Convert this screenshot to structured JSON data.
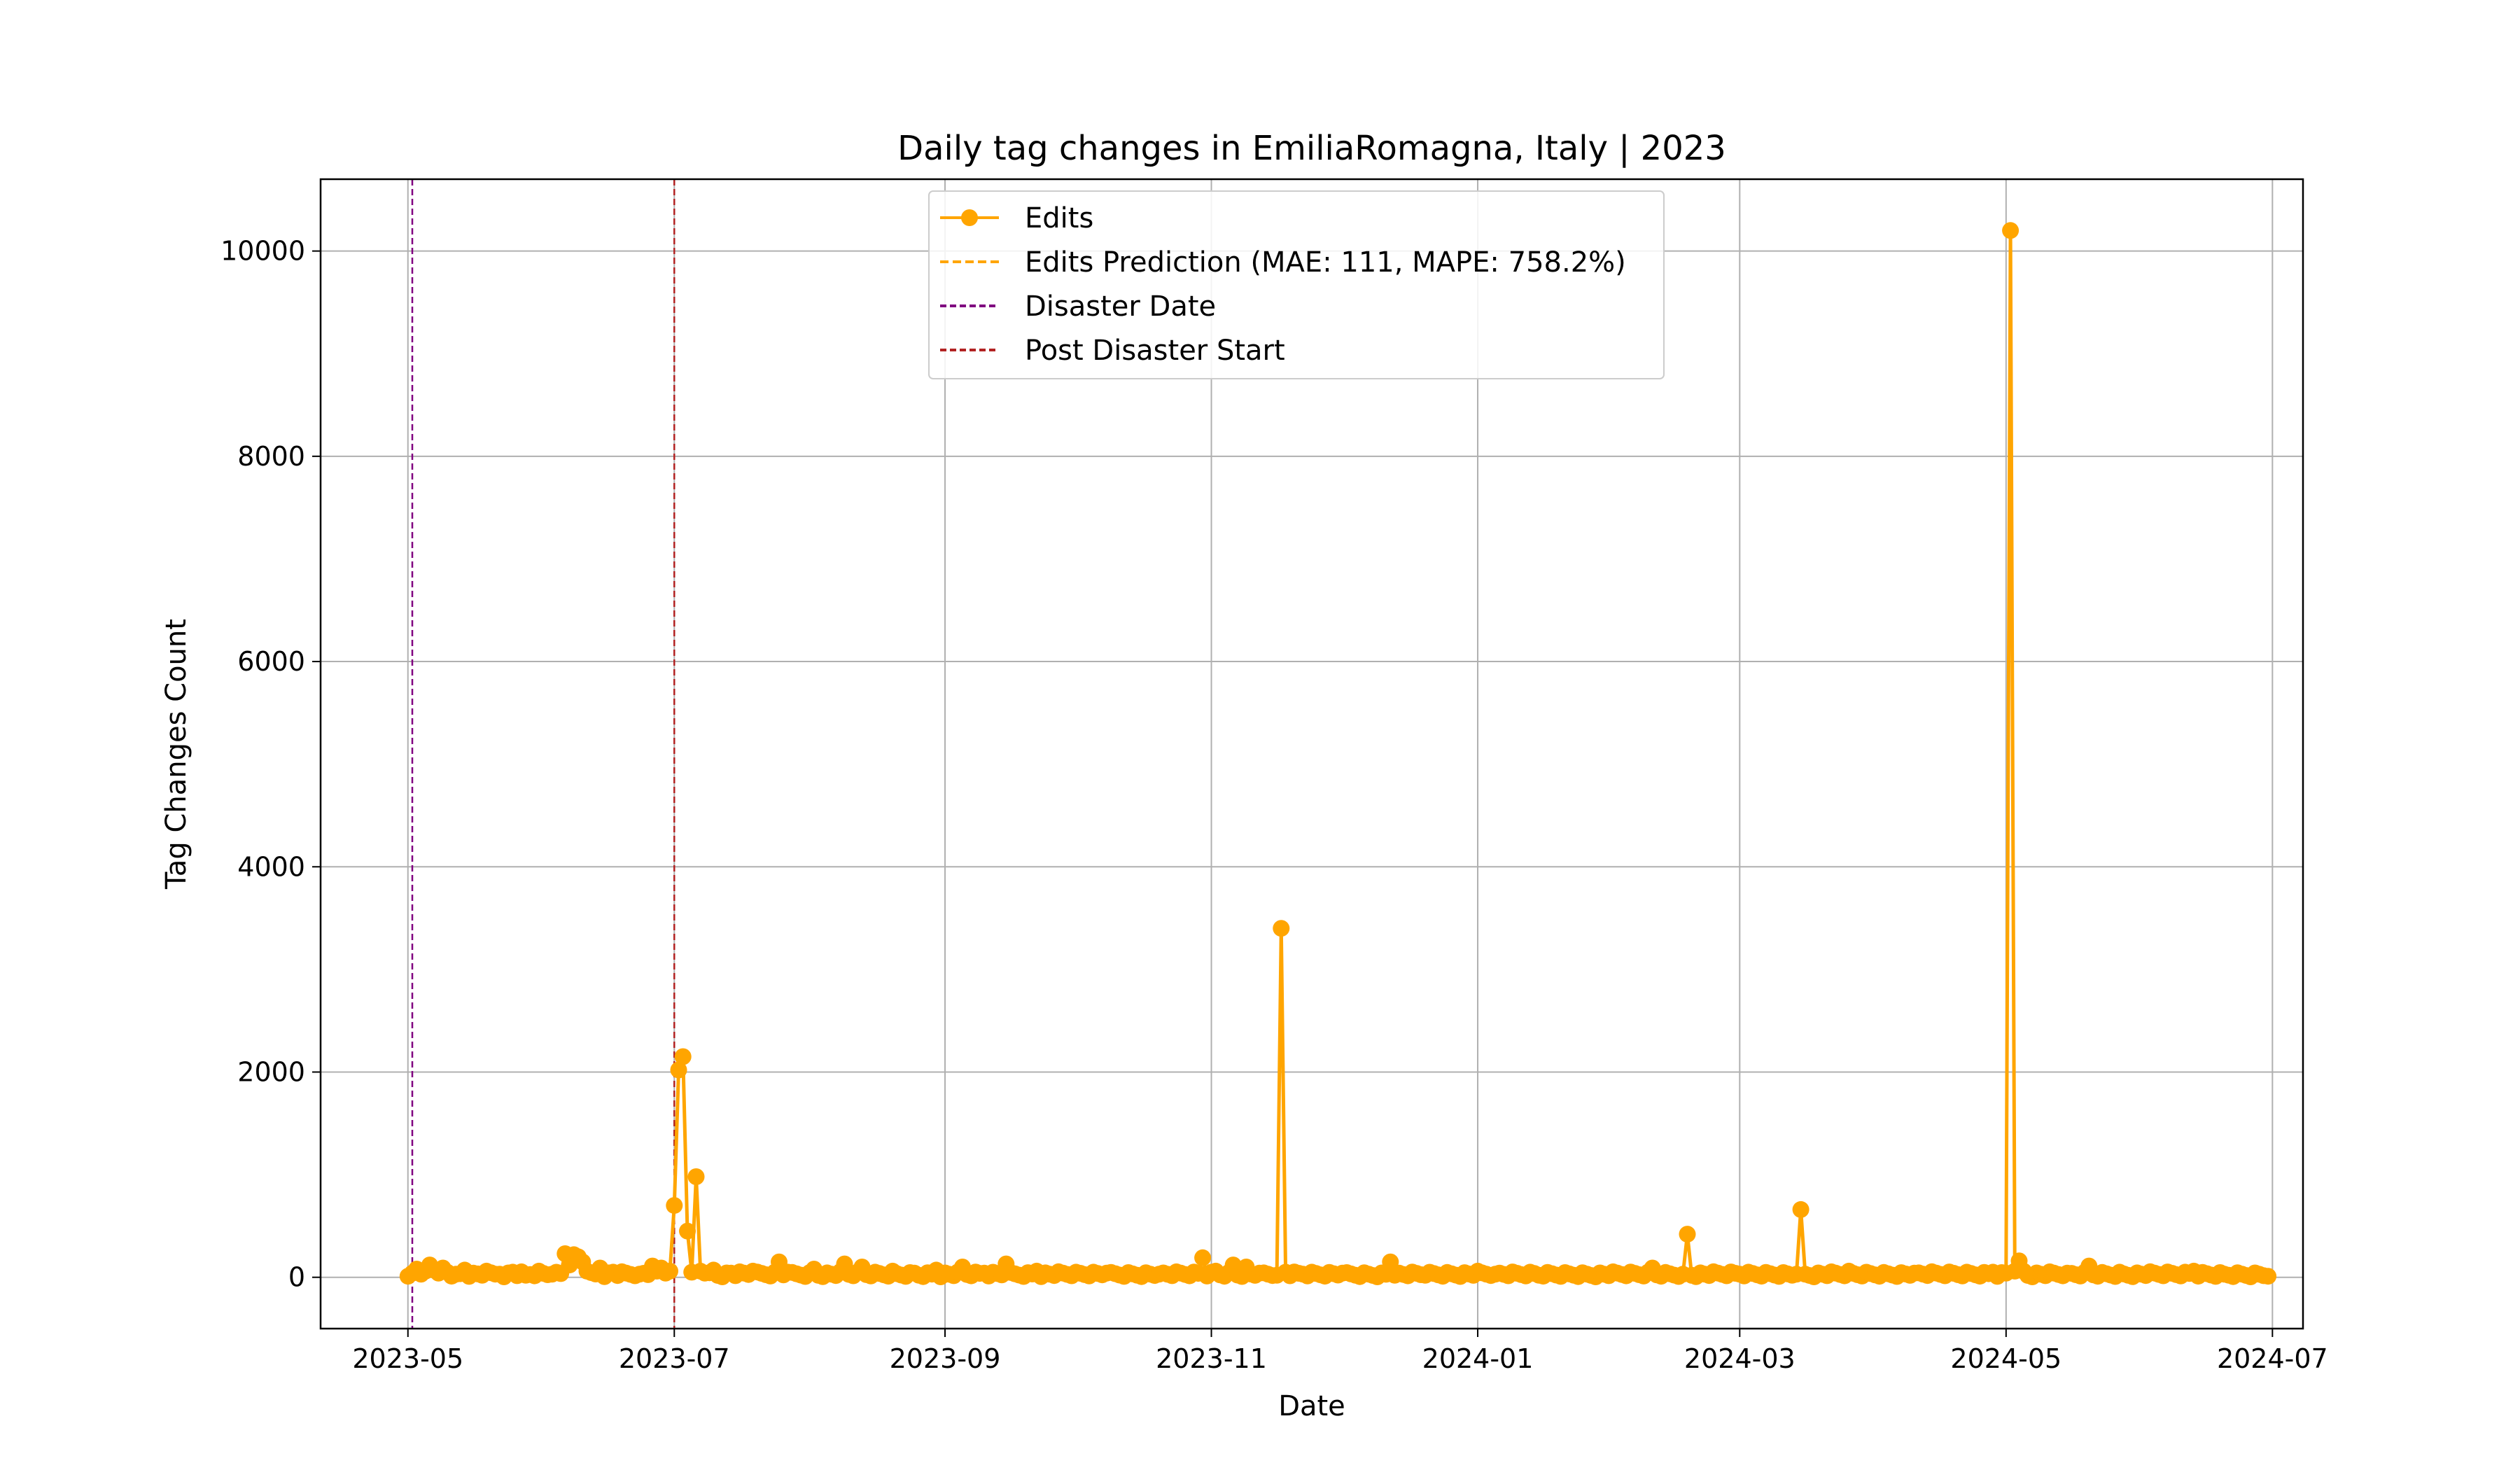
{
  "chart_data": {
    "type": "line",
    "title": "Daily tag changes in EmiliaRomagna, Italy | 2023",
    "xlabel": "Date",
    "ylabel": "Tag Changes Count",
    "xlim": [
      "2023-04-11",
      "2024-07-08"
    ],
    "ylim": [
      -500,
      10700
    ],
    "x_ticks": [
      "2023-05-01",
      "2023-07-01",
      "2023-09-01",
      "2023-11-01",
      "2024-01-01",
      "2024-03-01",
      "2024-05-01",
      "2024-07-01"
    ],
    "x_tick_labels": [
      "2023-05",
      "2023-07",
      "2023-09",
      "2023-11",
      "2024-01",
      "2024-03",
      "2024-05",
      "2024-07"
    ],
    "y_ticks": [
      0,
      2000,
      4000,
      6000,
      8000,
      10000
    ],
    "y_tick_labels": [
      "0",
      "2000",
      "4000",
      "6000",
      "8000",
      "10000"
    ],
    "grid": true,
    "legend_position": "top-center",
    "series": [
      {
        "name": "Edits",
        "color": "#ffa500",
        "marker": "circle",
        "line_style": "solid",
        "x_start": "2023-05-01",
        "x_end": "2024-06-30",
        "baseline": 20,
        "points": [
          [
            "2023-05-01",
            10
          ],
          [
            "2023-05-02",
            40
          ],
          [
            "2023-05-03",
            80
          ],
          [
            "2023-05-04",
            30
          ],
          [
            "2023-05-05",
            60
          ],
          [
            "2023-05-06",
            120
          ],
          [
            "2023-05-07",
            70
          ],
          [
            "2023-05-08",
            40
          ],
          [
            "2023-05-09",
            90
          ],
          [
            "2023-05-10",
            50
          ],
          [
            "2023-05-12",
            30
          ],
          [
            "2023-05-14",
            70
          ],
          [
            "2023-05-16",
            40
          ],
          [
            "2023-05-19",
            60
          ],
          [
            "2023-05-22",
            30
          ],
          [
            "2023-05-25",
            50
          ],
          [
            "2023-05-28",
            20
          ],
          [
            "2023-05-31",
            60
          ],
          [
            "2023-06-03",
            30
          ],
          [
            "2023-06-06",
            230
          ],
          [
            "2023-06-07",
            120
          ],
          [
            "2023-06-08",
            220
          ],
          [
            "2023-06-09",
            200
          ],
          [
            "2023-06-10",
            150
          ],
          [
            "2023-06-11",
            60
          ],
          [
            "2023-06-14",
            90
          ],
          [
            "2023-06-17",
            50
          ],
          [
            "2023-06-20",
            40
          ],
          [
            "2023-06-23",
            30
          ],
          [
            "2023-06-26",
            110
          ],
          [
            "2023-06-27",
            60
          ],
          [
            "2023-06-28",
            90
          ],
          [
            "2023-06-29",
            40
          ],
          [
            "2023-06-30",
            60
          ],
          [
            "2023-07-01",
            700
          ],
          [
            "2023-07-02",
            2020
          ],
          [
            "2023-07-03",
            2150
          ],
          [
            "2023-07-04",
            450
          ],
          [
            "2023-07-05",
            50
          ],
          [
            "2023-07-06",
            980
          ],
          [
            "2023-07-07",
            60
          ],
          [
            "2023-07-08",
            40
          ],
          [
            "2023-07-10",
            70
          ],
          [
            "2023-07-14",
            40
          ],
          [
            "2023-07-19",
            60
          ],
          [
            "2023-07-25",
            150
          ],
          [
            "2023-07-27",
            50
          ],
          [
            "2023-08-02",
            80
          ],
          [
            "2023-08-09",
            130
          ],
          [
            "2023-08-13",
            100
          ],
          [
            "2023-08-20",
            60
          ],
          [
            "2023-08-25",
            40
          ],
          [
            "2023-08-30",
            70
          ],
          [
            "2023-09-05",
            100
          ],
          [
            "2023-09-10",
            40
          ],
          [
            "2023-09-15",
            130
          ],
          [
            "2023-09-22",
            60
          ],
          [
            "2023-10-01",
            50
          ],
          [
            "2023-10-08",
            40
          ],
          [
            "2023-10-20",
            30
          ],
          [
            "2023-10-30",
            190
          ],
          [
            "2023-11-02",
            60
          ],
          [
            "2023-11-06",
            120
          ],
          [
            "2023-11-09",
            100
          ],
          [
            "2023-11-12",
            40
          ],
          [
            "2023-11-16",
            20
          ],
          [
            "2023-11-17",
            3400
          ],
          [
            "2023-11-18",
            50
          ],
          [
            "2023-11-22",
            30
          ],
          [
            "2023-12-01",
            40
          ],
          [
            "2023-12-12",
            150
          ],
          [
            "2023-12-13",
            20
          ],
          [
            "2023-12-20",
            20
          ],
          [
            "2024-01-01",
            60
          ],
          [
            "2024-01-05",
            30
          ],
          [
            "2024-01-15",
            20
          ],
          [
            "2024-02-10",
            90
          ],
          [
            "2024-02-17",
            30
          ],
          [
            "2024-02-18",
            420
          ],
          [
            "2024-02-19",
            20
          ],
          [
            "2024-03-01",
            30
          ],
          [
            "2024-03-14",
            30
          ],
          [
            "2024-03-15",
            660
          ],
          [
            "2024-03-16",
            30
          ],
          [
            "2024-03-26",
            60
          ],
          [
            "2024-04-10",
            40
          ],
          [
            "2024-04-28",
            50
          ],
          [
            "2024-05-01",
            40
          ],
          [
            "2024-05-02",
            10200
          ],
          [
            "2024-05-03",
            60
          ],
          [
            "2024-05-04",
            160
          ],
          [
            "2024-05-05",
            60
          ],
          [
            "2024-05-15",
            40
          ],
          [
            "2024-05-20",
            110
          ],
          [
            "2024-05-27",
            50
          ],
          [
            "2024-06-13",
            60
          ],
          [
            "2024-06-20",
            30
          ],
          [
            "2024-06-30",
            10
          ]
        ]
      },
      {
        "name": "Edits Prediction (MAE: 111, MAPE: 758.2%)",
        "color": "#ffa500",
        "line_style": "dashed",
        "points": []
      }
    ],
    "reference_lines": [
      {
        "name": "Disaster Date",
        "x": "2023-05-02",
        "color": "#800080",
        "line_style": "dashed"
      },
      {
        "name": "Post Disaster Start",
        "x": "2023-07-01",
        "color": "#b22222",
        "line_style": "dashed"
      }
    ]
  }
}
